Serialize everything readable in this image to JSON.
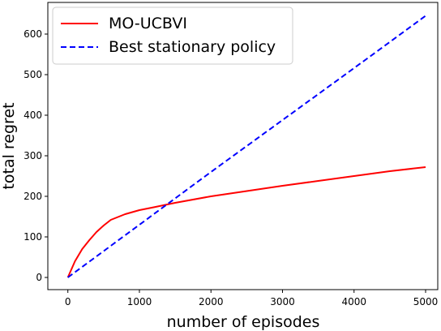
{
  "chart_data": {
    "type": "line",
    "xlabel": "number of episodes",
    "ylabel": "total regret",
    "xlim": [
      -280,
      5170
    ],
    "ylim": [
      -30,
      678
    ],
    "xticks": [
      0,
      1000,
      2000,
      3000,
      4000,
      5000
    ],
    "yticks": [
      0,
      100,
      200,
      300,
      400,
      500,
      600
    ],
    "grid": false,
    "legend_position": "top-left",
    "series": [
      {
        "name": "MO-UCBVI",
        "color": "#ff0000",
        "style": "solid",
        "x": [
          0,
          100,
          200,
          300,
          400,
          500,
          600,
          800,
          1000,
          1200,
          1500,
          2000,
          2500,
          3000,
          3500,
          4000,
          4500,
          5000
        ],
        "y": [
          0,
          40,
          70,
          92,
          112,
          128,
          142,
          156,
          166,
          173,
          184,
          200,
          213,
          226,
          238,
          250,
          262,
          272
        ]
      },
      {
        "name": "Best stationary policy",
        "color": "#0000ff",
        "style": "dashed",
        "x": [
          0,
          1000,
          2000,
          3000,
          4000,
          5000
        ],
        "y": [
          0,
          130,
          260,
          388,
          516,
          645
        ]
      }
    ]
  }
}
